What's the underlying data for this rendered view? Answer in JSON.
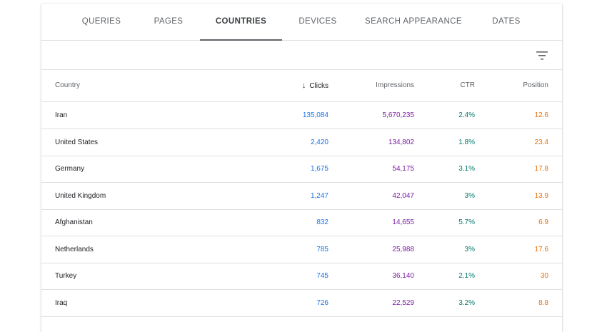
{
  "tabs": [
    {
      "label": "QUERIES",
      "active": false
    },
    {
      "label": "PAGES",
      "active": false
    },
    {
      "label": "COUNTRIES",
      "active": true
    },
    {
      "label": "DEVICES",
      "active": false
    },
    {
      "label": "SEARCH APPEARANCE",
      "active": false
    },
    {
      "label": "DATES",
      "active": false
    }
  ],
  "toolbar": {
    "filter_icon": "filter-list-icon"
  },
  "table": {
    "columns": {
      "country": "Country",
      "clicks": "Clicks",
      "impressions": "Impressions",
      "ctr": "CTR",
      "position": "Position"
    },
    "sort_icon": "arrow-down-icon",
    "rows": [
      {
        "country": "Iran",
        "clicks": "135,084",
        "impressions": "5,670,235",
        "ctr": "2.4%",
        "position": "12.6"
      },
      {
        "country": "United States",
        "clicks": "2,420",
        "impressions": "134,802",
        "ctr": "1.8%",
        "position": "23.4"
      },
      {
        "country": "Germany",
        "clicks": "1,675",
        "impressions": "54,175",
        "ctr": "3.1%",
        "position": "17.8"
      },
      {
        "country": "United Kingdom",
        "clicks": "1,247",
        "impressions": "42,047",
        "ctr": "3%",
        "position": "13.9"
      },
      {
        "country": "Afghanistan",
        "clicks": "832",
        "impressions": "14,655",
        "ctr": "5.7%",
        "position": "6.9"
      },
      {
        "country": "Netherlands",
        "clicks": "785",
        "impressions": "25,988",
        "ctr": "3%",
        "position": "17.6"
      },
      {
        "country": "Turkey",
        "clicks": "745",
        "impressions": "36,140",
        "ctr": "2.1%",
        "position": "30"
      },
      {
        "country": "Iraq",
        "clicks": "726",
        "impressions": "22,529",
        "ctr": "3.2%",
        "position": "8.8"
      }
    ]
  },
  "colors": {
    "clicks": "#1a73e8",
    "impressions": "#7b1fa2",
    "ctr": "#00796b",
    "position": "#e8710a"
  }
}
